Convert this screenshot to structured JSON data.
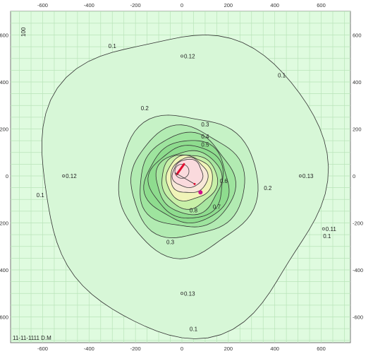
{
  "chart_data": {
    "type": "contour",
    "title": "",
    "xlabel": "",
    "ylabel": "",
    "xlim": [
      -600,
      600
    ],
    "ylim": [
      -600,
      600
    ],
    "x_ticks": [
      -600,
      -400,
      -200,
      0,
      200,
      400,
      600
    ],
    "y_ticks": [
      600,
      400,
      200,
      0,
      -200,
      -400,
      -600
    ],
    "grid": true,
    "levels": [
      0.1,
      0.2,
      0.3,
      0.4,
      0.5,
      0.6,
      0.7,
      0.8,
      0.9,
      1.0
    ],
    "contour_labels": [
      {
        "text": "0.1",
        "x": -300,
        "y": 545
      },
      {
        "text": "0.1",
        "x": 430,
        "y": 420
      },
      {
        "text": "0.1",
        "x": -610,
        "y": -90
      },
      {
        "text": "0.1",
        "x": 625,
        "y": -265
      },
      {
        "text": "0.1",
        "x": 50,
        "y": -660
      },
      {
        "text": "0.2",
        "x": -160,
        "y": 280
      },
      {
        "text": "0.2",
        "x": 370,
        "y": -60
      },
      {
        "text": "0.3",
        "x": 100,
        "y": 210
      },
      {
        "text": "0.3",
        "x": -50,
        "y": -290
      },
      {
        "text": "0.4",
        "x": 100,
        "y": 160
      },
      {
        "text": "0.5",
        "x": 100,
        "y": 125
      },
      {
        "text": "0.6",
        "x": 180,
        "y": -30
      },
      {
        "text": "0.7",
        "x": 150,
        "y": -140
      },
      {
        "text": "0.8",
        "x": 50,
        "y": -155
      }
    ],
    "point_values": [
      {
        "text": "0.12",
        "x": 0,
        "y": 510
      },
      {
        "text": "0.12",
        "x": -510,
        "y": 0
      },
      {
        "text": "0.13",
        "x": 510,
        "y": 0
      },
      {
        "text": "0.11",
        "x": 610,
        "y": -225
      },
      {
        "text": "0.13",
        "x": 0,
        "y": -500
      }
    ],
    "markers": [
      {
        "kind": "source",
        "x": 0,
        "y": 20
      },
      {
        "kind": "receptor",
        "x": 80,
        "y": -70
      }
    ],
    "stamp": "11-11-1111 D.M",
    "scale_label": "100"
  },
  "colors": {
    "background": "#dffbdf",
    "grid": "#b9e4b9",
    "outer": "#d7f7d7",
    "level_02": "#c6f2c6",
    "level_03": "#b2ebb2",
    "level_04": "#9ee49e",
    "level_05": "#8edc8e",
    "level_06": "#a8e6a0",
    "level_07": "#c8f0a8",
    "level_08": "#f0f4b8",
    "level_09": "#f8e8d8",
    "center": "#fadadd",
    "source": "#e01030",
    "receptor": "#d0108a"
  }
}
